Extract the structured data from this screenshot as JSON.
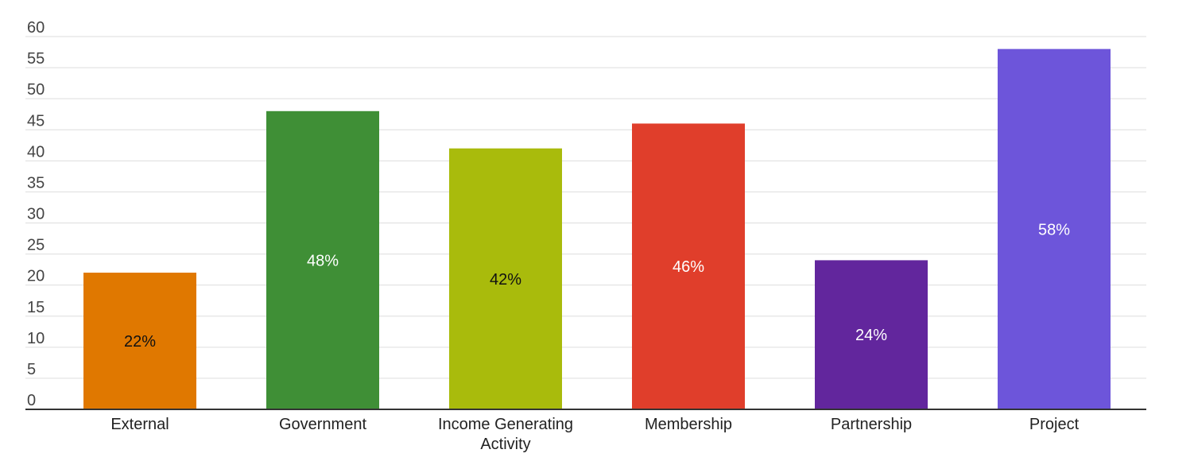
{
  "chart_data": {
    "type": "bar",
    "categories": [
      [
        "External"
      ],
      [
        "Government"
      ],
      [
        "Income Generating",
        "Activity"
      ],
      [
        "Membership"
      ],
      [
        "Partnership"
      ],
      [
        "Project"
      ]
    ],
    "values": [
      22,
      48,
      42,
      46,
      24,
      58
    ],
    "data_labels": [
      "22%",
      "48%",
      "42%",
      "46%",
      "24%",
      "58%"
    ],
    "bar_colors": [
      "#e07800",
      "#3f8f36",
      "#a9bb0c",
      "#e03e2b",
      "#62269d",
      "#6d55da"
    ],
    "label_colors": [
      "#111111",
      "#ffffff",
      "#111111",
      "#ffffff",
      "#ffffff",
      "#ffffff"
    ],
    "ylim": [
      0,
      60
    ],
    "y_ticks": [
      0,
      5,
      10,
      15,
      20,
      25,
      30,
      35,
      40,
      45,
      50,
      55,
      60
    ],
    "grid": true,
    "legend": "none",
    "title": "",
    "xlabel": "",
    "ylabel": ""
  }
}
